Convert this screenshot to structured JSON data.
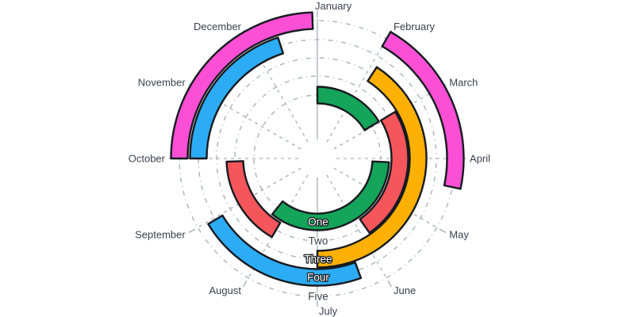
{
  "chart_data": {
    "type": "radial-bar",
    "title": "",
    "angle_axis": {
      "categories": [
        "January",
        "February",
        "March",
        "April",
        "May",
        "June",
        "July",
        "August",
        "September",
        "October",
        "November",
        "December"
      ],
      "start": "top",
      "direction": "clockwise",
      "degrees_per_month": 30
    },
    "radial_axis": {
      "rings": [
        "One",
        "Two",
        "Three",
        "Four",
        "Five"
      ],
      "order": "inner-to-outer"
    },
    "series": [
      {
        "ring": "One",
        "color": "#14A45A",
        "segments": [
          {
            "start_deg": 0,
            "end_deg": 59,
            "span": "January to late February"
          },
          {
            "start_deg": 93,
            "end_deg": 219,
            "span": "early April to mid August"
          }
        ]
      },
      {
        "ring": "Two",
        "color": "#F4565C",
        "segments": [
          {
            "start_deg": 59,
            "end_deg": 145,
            "span": "late February to late May"
          },
          {
            "start_deg": 210,
            "end_deg": 268,
            "span": "August to late September"
          }
        ]
      },
      {
        "ring": "Three",
        "color": "#FCB001",
        "segments": [
          {
            "start_deg": 33,
            "end_deg": 180,
            "span": "early February to end of June"
          }
        ]
      },
      {
        "ring": "Four",
        "color": "#2CACF4",
        "segments": [
          {
            "start_deg": 160,
            "end_deg": 239,
            "span": "mid June to late August"
          },
          {
            "start_deg": 270,
            "end_deg": 342,
            "span": "October to mid December"
          }
        ]
      },
      {
        "ring": "Five",
        "color": "#FB4FD5",
        "segments": [
          {
            "start_deg": 30,
            "end_deg": 102,
            "span": "February to mid April"
          },
          {
            "start_deg": 270,
            "end_deg": 358,
            "span": "October to late December"
          }
        ]
      }
    ],
    "grid": {
      "circles": "dashed",
      "spokes": "dashed",
      "legend": "none"
    },
    "colors": {
      "band_outline": "#171A20",
      "grid_line": "#A7ADB6",
      "axis_line": "#B3B9C2",
      "label_text": "#394150",
      "label_halo": "#FFFFFF",
      "background": "#FFFFFF"
    }
  }
}
